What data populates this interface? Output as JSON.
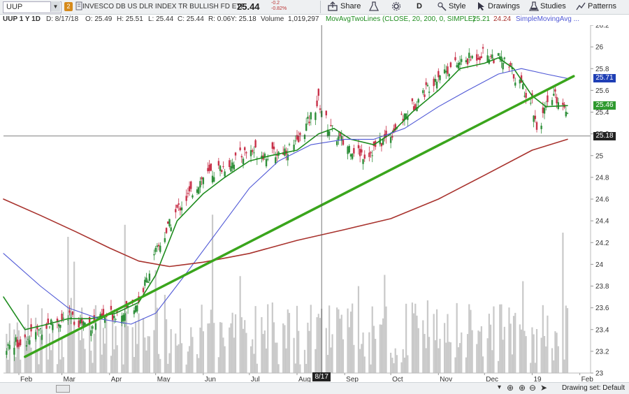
{
  "header": {
    "symbol": "UUP",
    "badge": "2",
    "description": "INVESCO DB US DLR INDEX TR BULLISH FD ETF",
    "last": "25.44",
    "change_abs": "-0.2",
    "change_pct": "-0.82%"
  },
  "toolbar": {
    "share": "Share",
    "style": "Style",
    "period": "D",
    "drawings": "Drawings",
    "studies": "Studies",
    "patterns": "Patterns"
  },
  "infobar": {
    "label": "UUP 1 Y 1D",
    "date": "D: 8/17/18",
    "open": "O: 25.49",
    "high": "H: 25.51",
    "low": "L: 25.44",
    "close": "C: 25.44",
    "range": "R: 0.06",
    "y": "Y: 25.18",
    "volume_label": "Volume",
    "volume": "1,019,297",
    "study1": "MovAvgTwoLines (CLOSE, 20, 200, 0, SIMPLE)",
    "study1_v1": "25.21",
    "study1_v2": "24.24",
    "study2": "SimpleMovingAvg ..."
  },
  "price_tags": {
    "blue": "25.71",
    "green": "25.46",
    "cursor": "25.18",
    "cursor_date": "8/17"
  },
  "bottom": {
    "drawing_set": "Drawing set: Default"
  },
  "colors": {
    "up": "#2f8f3a",
    "down": "#c8324a",
    "ma20": "#1e8c1e",
    "ma50": "#4f58d6",
    "ma200": "#a8322d",
    "trendline": "#3aa51c",
    "volume": "#c9c9c9",
    "tag_blue": "#1f3fb5",
    "tag_green": "#2f9a2f",
    "tag_cursor": "#222222"
  },
  "chart_data": {
    "type": "line",
    "title": "UUP 1 Y 1D",
    "xlabel": "",
    "ylabel": "",
    "ylim": [
      23.0,
      26.2
    ],
    "x_ticks": [
      "Feb",
      "Mar",
      "Apr",
      "May",
      "Jun",
      "Jul",
      "Aug",
      "Sep",
      "Oct",
      "Nov",
      "Dec",
      "19",
      "Feb"
    ],
    "y_ticks": [
      23,
      23.2,
      23.4,
      23.6,
      23.8,
      24,
      24.2,
      24.4,
      24.6,
      24.8,
      25,
      25.2,
      25.4,
      25.6,
      25.8,
      26,
      26.2
    ],
    "x_range": [
      "2018-01-22",
      "2019-02-08"
    ],
    "series": [
      {
        "name": "Close (approx.)",
        "x": [
          "2018-01-24",
          "2018-02-05",
          "2018-02-20",
          "2018-03-05",
          "2018-03-20",
          "2018-04-05",
          "2018-04-20",
          "2018-05-01",
          "2018-05-15",
          "2018-06-01",
          "2018-06-15",
          "2018-07-01",
          "2018-07-15",
          "2018-08-01",
          "2018-08-15",
          "2018-08-22",
          "2018-09-01",
          "2018-09-15",
          "2018-10-01",
          "2018-10-15",
          "2018-11-01",
          "2018-11-15",
          "2018-12-01",
          "2018-12-15",
          "2019-01-01",
          "2019-01-04",
          "2019-01-15",
          "2019-01-24"
        ],
        "values": [
          23.25,
          23.3,
          23.45,
          23.5,
          23.45,
          23.55,
          23.65,
          24.1,
          24.5,
          24.8,
          24.9,
          25.05,
          25.0,
          25.1,
          25.5,
          25.25,
          25.1,
          25.0,
          25.2,
          25.45,
          25.75,
          25.85,
          25.95,
          25.85,
          25.5,
          25.25,
          25.55,
          25.44
        ]
      },
      {
        "name": "SMA 20",
        "x": [
          "2018-01-22",
          "2018-02-05",
          "2018-02-20",
          "2018-03-05",
          "2018-03-20",
          "2018-04-05",
          "2018-04-20",
          "2018-05-01",
          "2018-05-15",
          "2018-06-01",
          "2018-06-15",
          "2018-07-01",
          "2018-07-15",
          "2018-08-01",
          "2018-08-15",
          "2018-08-25",
          "2018-09-05",
          "2018-09-20",
          "2018-10-01",
          "2018-10-15",
          "2018-11-01",
          "2018-11-15",
          "2018-12-01",
          "2018-12-10",
          "2018-12-20",
          "2019-01-01",
          "2019-01-10",
          "2019-01-24"
        ],
        "values": [
          23.7,
          23.4,
          23.45,
          23.5,
          23.5,
          23.55,
          23.65,
          23.9,
          24.4,
          24.65,
          24.8,
          24.95,
          25.0,
          25.05,
          25.2,
          25.25,
          25.15,
          25.1,
          25.2,
          25.4,
          25.6,
          25.8,
          25.85,
          25.9,
          25.8,
          25.55,
          25.45,
          25.46
        ]
      },
      {
        "name": "SMA 50",
        "x": [
          "2018-01-22",
          "2018-02-15",
          "2018-03-05",
          "2018-03-25",
          "2018-04-15",
          "2018-05-01",
          "2018-05-20",
          "2018-06-10",
          "2018-07-01",
          "2018-07-20",
          "2018-08-10",
          "2018-09-01",
          "2018-09-20",
          "2018-10-10",
          "2018-11-01",
          "2018-11-20",
          "2018-12-10",
          "2018-12-25",
          "2019-01-10",
          "2019-01-24"
        ],
        "values": [
          24.1,
          23.8,
          23.6,
          23.5,
          23.45,
          23.55,
          23.9,
          24.3,
          24.7,
          24.95,
          25.1,
          25.15,
          25.15,
          25.25,
          25.45,
          25.6,
          25.75,
          25.8,
          25.75,
          25.71
        ]
      },
      {
        "name": "SMA 200",
        "x": [
          "2018-01-22",
          "2018-02-15",
          "2018-03-10",
          "2018-04-01",
          "2018-04-20",
          "2018-05-10",
          "2018-06-01",
          "2018-07-01",
          "2018-08-01",
          "2018-09-01",
          "2018-10-01",
          "2018-11-01",
          "2018-12-01",
          "2019-01-01",
          "2019-01-24"
        ],
        "values": [
          24.6,
          24.45,
          24.3,
          24.15,
          24.03,
          23.98,
          24.02,
          24.1,
          24.22,
          24.32,
          24.42,
          24.6,
          24.82,
          25.05,
          25.15
        ]
      },
      {
        "name": "Trendline",
        "x": [
          "2018-02-05",
          "2019-01-28"
        ],
        "values": [
          23.15,
          25.73
        ]
      }
    ],
    "cursor": {
      "date": "2018-08-17",
      "price": 25.18
    }
  }
}
